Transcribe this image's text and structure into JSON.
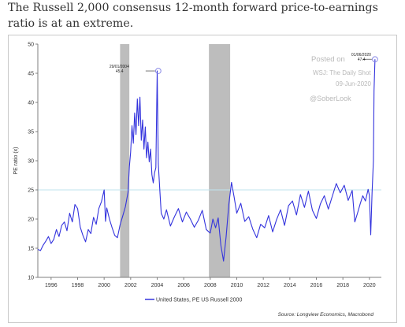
{
  "caption": {
    "text": "The Russell 2,000 consensus 12-month forward price-to-earnings ratio is at an extreme."
  },
  "colors": {
    "series": "#3333dd",
    "recession_band": "#bdbdbd",
    "reference_line": "#bfe3ee",
    "axis": "#7f7f7f",
    "watermark": "#b9b9b9"
  },
  "chart_data": {
    "type": "line",
    "ylabel": "PE ratio (x)",
    "xlabel": "",
    "ylim": [
      10,
      50
    ],
    "y_ticks": [
      10,
      15,
      20,
      25,
      30,
      35,
      40,
      45,
      50
    ],
    "xlim": [
      1995.0,
      2020.9
    ],
    "x_ticks": [
      1996,
      1998,
      2000,
      2002,
      2004,
      2006,
      2008,
      2010,
      2012,
      2014,
      2016,
      2018,
      2020
    ],
    "grid": false,
    "reference_line_y": 25,
    "recession_bands": [
      [
        2001.2,
        2001.9
      ],
      [
        2007.9,
        2009.5
      ]
    ],
    "legend": {
      "position": "bottom-center",
      "entries": [
        "United States, PE US Russell 2000"
      ]
    },
    "series": [
      {
        "name": "United States, PE US Russell 2000",
        "x": [
          1995.0,
          1995.2,
          1995.4,
          1995.6,
          1995.8,
          1996.0,
          1996.2,
          1996.4,
          1996.6,
          1996.8,
          1997.0,
          1997.2,
          1997.4,
          1997.6,
          1997.8,
          1998.0,
          1998.2,
          1998.4,
          1998.6,
          1998.8,
          1999.0,
          1999.2,
          1999.4,
          1999.6,
          1999.8,
          2000.0,
          2000.1,
          2000.2,
          2000.4,
          2000.6,
          2000.8,
          2001.0,
          2001.2,
          2001.4,
          2001.6,
          2001.8,
          2001.9,
          2002.0,
          2002.1,
          2002.2,
          2002.3,
          2002.4,
          2002.5,
          2002.6,
          2002.7,
          2002.8,
          2002.9,
          2003.0,
          2003.1,
          2003.2,
          2003.3,
          2003.4,
          2003.5,
          2003.6,
          2003.7,
          2003.8,
          2003.9,
          2004.0,
          2004.08,
          2004.2,
          2004.3,
          2004.5,
          2004.7,
          2005.0,
          2005.3,
          2005.6,
          2005.9,
          2006.2,
          2006.5,
          2006.8,
          2007.1,
          2007.4,
          2007.7,
          2008.0,
          2008.2,
          2008.4,
          2008.6,
          2008.8,
          2009.0,
          2009.2,
          2009.4,
          2009.6,
          2009.8,
          2010.0,
          2010.3,
          2010.6,
          2010.9,
          2011.2,
          2011.5,
          2011.8,
          2012.1,
          2012.4,
          2012.7,
          2013.0,
          2013.3,
          2013.6,
          2013.9,
          2014.2,
          2014.5,
          2014.8,
          2015.1,
          2015.4,
          2015.7,
          2016.0,
          2016.3,
          2016.6,
          2016.9,
          2017.2,
          2017.5,
          2017.8,
          2018.1,
          2018.4,
          2018.7,
          2018.9,
          2019.1,
          2019.3,
          2019.5,
          2019.7,
          2019.9,
          2020.0,
          2020.1,
          2020.2,
          2020.3,
          2020.35,
          2020.42
        ],
        "values": [
          14.8,
          14.6,
          15.5,
          16.2,
          17.0,
          15.8,
          16.5,
          18.2,
          17.0,
          18.9,
          19.5,
          18.0,
          21.0,
          19.5,
          22.5,
          21.8,
          18.6,
          17.2,
          16.1,
          18.2,
          17.5,
          20.3,
          19.1,
          21.8,
          23.0,
          25.0,
          19.6,
          21.9,
          20.0,
          18.5,
          17.2,
          16.8,
          19.0,
          20.5,
          22.1,
          24.6,
          29.0,
          31.5,
          36.0,
          33.0,
          38.2,
          34.5,
          40.6,
          36.0,
          40.9,
          33.5,
          37.0,
          32.0,
          35.8,
          30.5,
          33.2,
          29.8,
          32.0,
          27.6,
          26.2,
          27.9,
          28.8,
          45.4,
          29.5,
          24.8,
          21.0,
          20.0,
          21.6,
          18.8,
          20.4,
          21.8,
          19.5,
          21.2,
          20.0,
          18.6,
          19.8,
          21.5,
          18.2,
          17.6,
          20.0,
          18.5,
          20.2,
          15.5,
          12.8,
          17.0,
          22.5,
          26.3,
          23.8,
          21.0,
          22.7,
          19.6,
          20.4,
          18.3,
          16.8,
          19.1,
          18.5,
          20.6,
          17.8,
          19.9,
          21.6,
          18.9,
          22.3,
          23.1,
          20.7,
          24.2,
          22.0,
          24.8,
          21.5,
          20.1,
          22.6,
          24.0,
          21.7,
          23.9,
          26.1,
          24.5,
          25.8,
          23.2,
          24.9,
          19.5,
          21.0,
          22.6,
          24.0,
          23.1,
          25.1,
          24.1,
          17.3,
          24.5,
          30.0,
          42.0,
          47.4
        ]
      }
    ],
    "annotations": [
      {
        "date": "29/01/2004",
        "value": "45.4",
        "x": 2004.08,
        "y": 45.4
      },
      {
        "date": "01/06/2020",
        "value": "47.4",
        "x": 2020.42,
        "y": 47.4
      }
    ]
  },
  "watermark": {
    "posted": "Posted on",
    "source_line": "WSJ: The Daily Shot",
    "date": "09-Jun-2020",
    "handle": "@SoberLook"
  },
  "source_text": "Source: Longview Economics, Macrobond"
}
